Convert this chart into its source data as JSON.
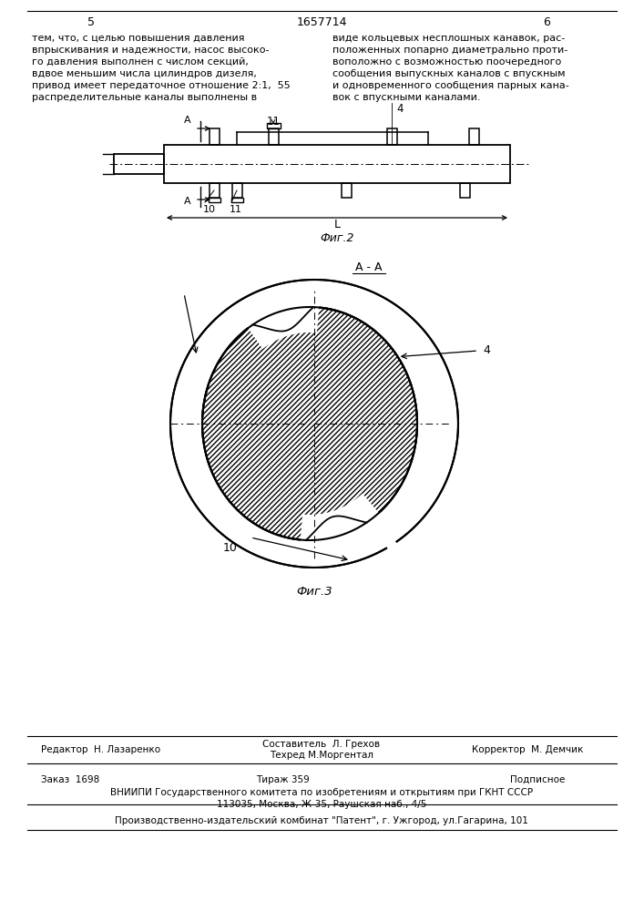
{
  "page_num_left": "5",
  "page_num_center": "1657714",
  "page_num_right": "6",
  "text_left_lines": [
    "тем, что, с целью повышения давления",
    "впрыскивания и надежности, насос высоко-",
    "го давления выполнен с числом секций,",
    "вдвое меньшим числа цилиндров дизеля,",
    "привод имеет передаточное отношение 2:1,  55",
    "распределительные каналы выполнены в"
  ],
  "text_right_lines": [
    "виде кольцевых несплошных канавок, рас-",
    "положенных попарно диаметрально проти-",
    "воположно с возможностью поочередного",
    "сообщения выпускных каналов с впускным",
    "и одновременного сообщения парных кана-",
    "вок с впускными каналами."
  ],
  "fig2_label": "Фиг.2",
  "fig3_label": "Фиг.3",
  "section_label": "А - А",
  "label_4": "4",
  "label_10": "10",
  "label_11": "11",
  "label_A": "А",
  "label_L": "L",
  "footer_left1": "Редактор  Н. Лазаренко",
  "footer_center1": "Составитель  Л. Грехов",
  "footer_center2": "Техред М.Моргентал",
  "footer_right1": "Корректор  М. Демчик",
  "footer2_left": "Заказ  1698",
  "footer2_center": "Тираж 359",
  "footer2_right": "Подписное",
  "footer3": "ВНИИПИ Государственного комитета по изобретениям и открытиям при ГКНТ СССР",
  "footer4": "113035, Москва, Ж-35, Раушская наб., 4/5",
  "footer5": "Производственно-издательский комбинат \"Патент\", г. Ужгород, ул.Гагарина, 101",
  "bg_color": "#ffffff"
}
